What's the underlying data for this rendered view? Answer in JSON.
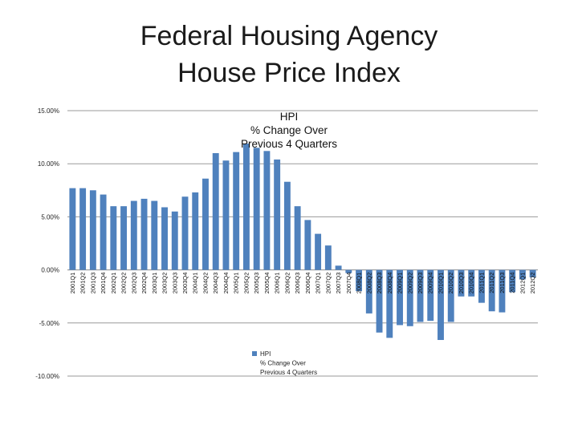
{
  "slide": {
    "title_line1": "Federal Housing Agency",
    "title_line2": "House Price Index"
  },
  "chart_data": {
    "type": "bar",
    "title_lines": [
      "HPI",
      "% Change Over",
      "Previous 4 Quarters"
    ],
    "series_name": "HPI % Change Over Previous 4 Quarters",
    "legend_lines": [
      "HPI",
      "% Change Over",
      "Previous 4 Quarters"
    ],
    "legend_position": "bottom-center",
    "ylim": [
      -10,
      15
    ],
    "yticks": [
      15,
      10,
      5,
      0,
      -5,
      -10
    ],
    "ytick_labels": [
      "15.00%",
      "10.00%",
      "5.00%",
      "0.00%",
      "-5.00%",
      "-10.00%"
    ],
    "grid": true,
    "bar_color": "#4f81bd",
    "categories": [
      "2001Q1",
      "2001Q2",
      "2001Q3",
      "2001Q4",
      "2002Q1",
      "2002Q2",
      "2002Q3",
      "2002Q4",
      "2003Q1",
      "2003Q2",
      "2003Q3",
      "2003Q4",
      "2004Q1",
      "2004Q2",
      "2004Q3",
      "2004Q4",
      "2005Q1",
      "2005Q2",
      "2005Q3",
      "2005Q4",
      "2006Q1",
      "2006Q2",
      "2006Q3",
      "2006Q4",
      "2007Q1",
      "2007Q2",
      "2007Q3",
      "2007Q4",
      "2008Q1",
      "2008Q2",
      "2008Q3",
      "2008Q4",
      "2009Q1",
      "2009Q2",
      "2009Q3",
      "2009Q4",
      "2010Q1",
      "2010Q2",
      "2010Q3",
      "2010Q4",
      "2011Q1",
      "2011Q2",
      "2011Q3",
      "2011Q4",
      "2012Q1",
      "2012Q2"
    ],
    "values": [
      7.7,
      7.7,
      7.5,
      7.1,
      6.0,
      6.0,
      6.5,
      6.7,
      6.5,
      5.9,
      5.5,
      6.9,
      7.3,
      8.6,
      11.0,
      10.3,
      11.1,
      11.9,
      11.5,
      11.2,
      10.4,
      8.3,
      6.0,
      4.7,
      3.4,
      2.3,
      0.4,
      -0.3,
      -2.0,
      -4.1,
      -5.9,
      -6.4,
      -5.2,
      -5.3,
      -4.9,
      -4.8,
      -6.6,
      -4.9,
      -2.5,
      -2.5,
      -3.1,
      -3.9,
      -4.0,
      -2.1,
      -0.9,
      -0.7
    ]
  }
}
